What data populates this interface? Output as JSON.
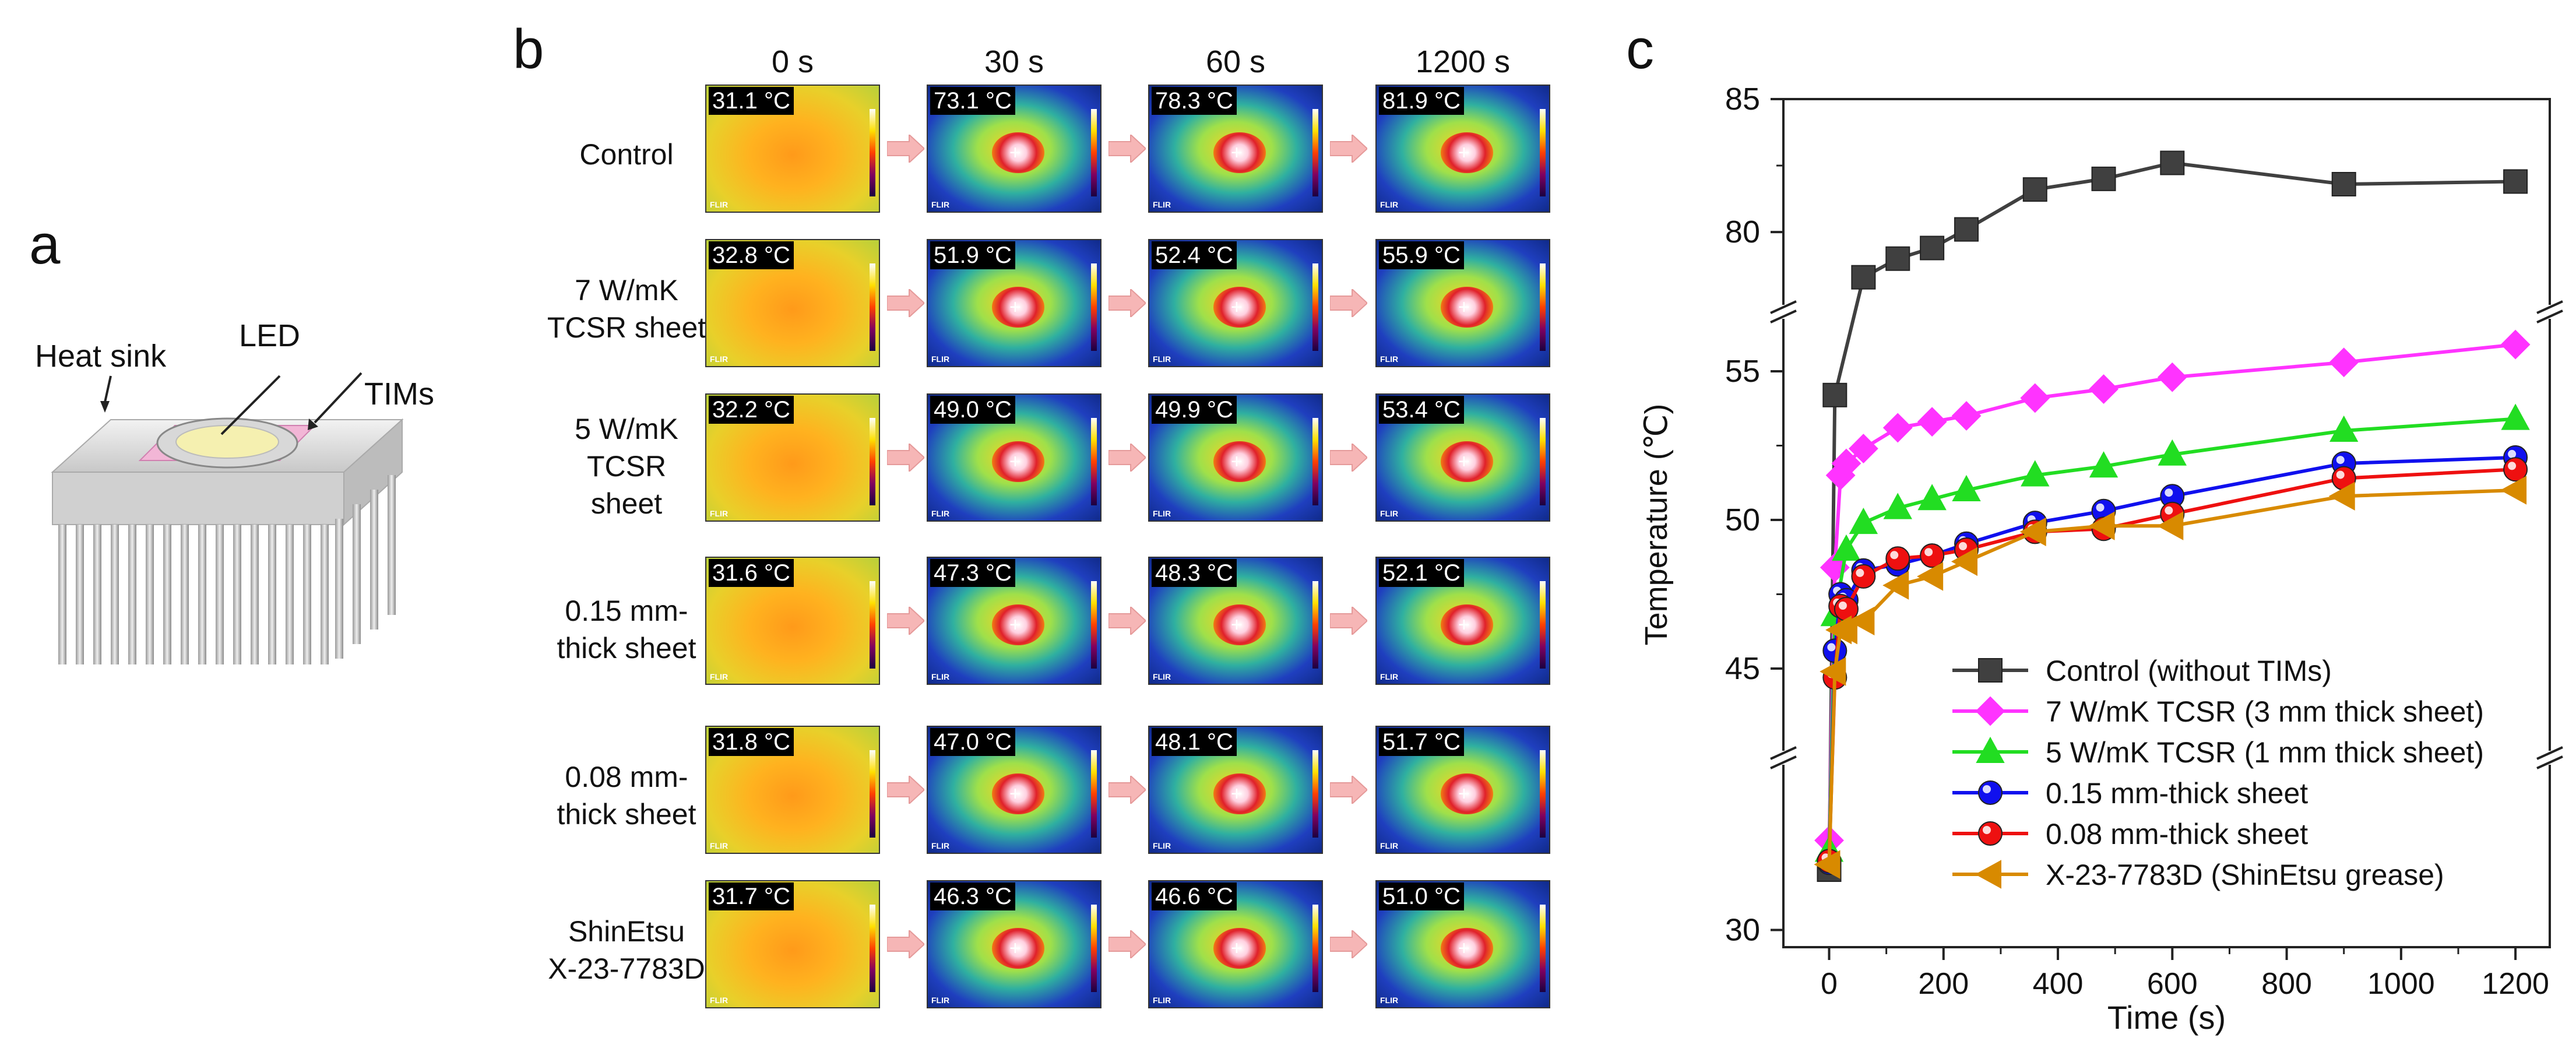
{
  "panel_a": {
    "letter": "a",
    "labels": {
      "heat_sink": "Heat sink",
      "led": "LED",
      "tims": "TIMs"
    }
  },
  "panel_b": {
    "letter": "b",
    "time_headers": [
      "0 s",
      "30 s",
      "60 s",
      "1200 s"
    ],
    "rows": [
      {
        "label_lines": [
          "Control"
        ],
        "temps": [
          "31.1 °C",
          "73.1 °C",
          "78.3 °C",
          "81.9 °C"
        ]
      },
      {
        "label_lines": [
          "7 W/mK",
          "TCSR sheet"
        ],
        "temps": [
          "32.8 °C",
          "51.9 °C",
          "52.4 °C",
          "55.9 °C"
        ]
      },
      {
        "label_lines": [
          "5 W/mK",
          "TCSR",
          "sheet"
        ],
        "temps": [
          "32.2 °C",
          "49.0 °C",
          "49.9 °C",
          "53.4 °C"
        ]
      },
      {
        "label_lines": [
          "0.15 mm-",
          "thick sheet"
        ],
        "temps": [
          "31.6 °C",
          "47.3 °C",
          "48.3 °C",
          "52.1 °C"
        ]
      },
      {
        "label_lines": [
          "0.08 mm-",
          "thick sheet"
        ],
        "temps": [
          "31.8 °C",
          "47.0 °C",
          "48.1 °C",
          "51.7 °C"
        ]
      },
      {
        "label_lines": [
          "ShinEtsu",
          "X-23-7783D"
        ],
        "temps": [
          "31.7 °C",
          "46.3 °C",
          "46.6 °C",
          "51.0 °C"
        ]
      }
    ],
    "flir_text": "FLIR",
    "colors": {
      "cold": "#1f3fbf",
      "warm": "#ffd21f",
      "hot": "#e0202a",
      "arrow": "#f6b6b6"
    }
  },
  "chart_data": {
    "letter": "c",
    "type": "line",
    "xlabel": "Time (s)",
    "ylabel": "Temperature (℃)",
    "xlim": [
      -80,
      1260
    ],
    "x_ticks": [
      0,
      200,
      400,
      600,
      800,
      1000,
      1200
    ],
    "y_ticks": [
      30,
      45,
      50,
      55,
      80,
      85
    ],
    "y_axis_break": true,
    "legend_position": "bottom-right",
    "series": [
      {
        "name": "Control (without TIMs)",
        "color": "#404040",
        "marker": "square",
        "x": [
          0,
          10,
          60,
          120,
          180,
          240,
          360,
          480,
          600,
          900,
          1200
        ],
        "y": [
          33.5,
          54.2,
          78.3,
          79.0,
          79.4,
          80.1,
          81.6,
          82.0,
          82.6,
          81.8,
          81.9
        ]
      },
      {
        "name": "7 W/mK TCSR (3 mm thick sheet)",
        "color": "#ff33ff",
        "marker": "diamond",
        "x": [
          0,
          10,
          20,
          30,
          60,
          120,
          180,
          240,
          360,
          480,
          600,
          900,
          1200
        ],
        "y": [
          35.2,
          48.4,
          51.5,
          51.9,
          52.4,
          53.1,
          53.3,
          53.5,
          54.1,
          54.4,
          54.8,
          55.3,
          55.9
        ]
      },
      {
        "name": "5 W/mK TCSR (1 mm thick sheet)",
        "color": "#22dd22",
        "marker": "triangle-up",
        "x": [
          0,
          10,
          30,
          60,
          120,
          180,
          240,
          360,
          480,
          600,
          900,
          1200
        ],
        "y": [
          34.6,
          46.8,
          49.0,
          49.9,
          50.4,
          50.7,
          51.0,
          51.5,
          51.8,
          52.2,
          53.0,
          53.4
        ]
      },
      {
        "name": "0.15 mm-thick sheet",
        "color": "#1010ee",
        "marker": "circle",
        "x": [
          0,
          10,
          20,
          30,
          60,
          120,
          180,
          240,
          360,
          480,
          600,
          900,
          1200
        ],
        "y": [
          33.9,
          45.6,
          47.5,
          47.3,
          48.3,
          48.5,
          48.8,
          49.2,
          49.9,
          50.3,
          50.8,
          51.9,
          52.1
        ]
      },
      {
        "name": "0.08 mm-thick sheet",
        "color": "#ee1010",
        "marker": "circle",
        "x": [
          0,
          10,
          20,
          30,
          60,
          120,
          180,
          240,
          360,
          480,
          600,
          900,
          1200
        ],
        "y": [
          34.0,
          44.7,
          47.1,
          47.0,
          48.1,
          48.7,
          48.8,
          49.0,
          49.6,
          49.7,
          50.2,
          51.4,
          51.7
        ]
      },
      {
        "name": "X-23-7783D (ShinEtsu grease)",
        "color": "#d88a00",
        "marker": "triangle-left",
        "x": [
          0,
          10,
          20,
          30,
          60,
          120,
          180,
          240,
          360,
          480,
          600,
          900,
          1200
        ],
        "y": [
          33.8,
          44.9,
          46.3,
          46.3,
          46.6,
          47.8,
          48.1,
          48.6,
          49.6,
          49.8,
          49.8,
          50.8,
          51.0
        ]
      }
    ]
  }
}
